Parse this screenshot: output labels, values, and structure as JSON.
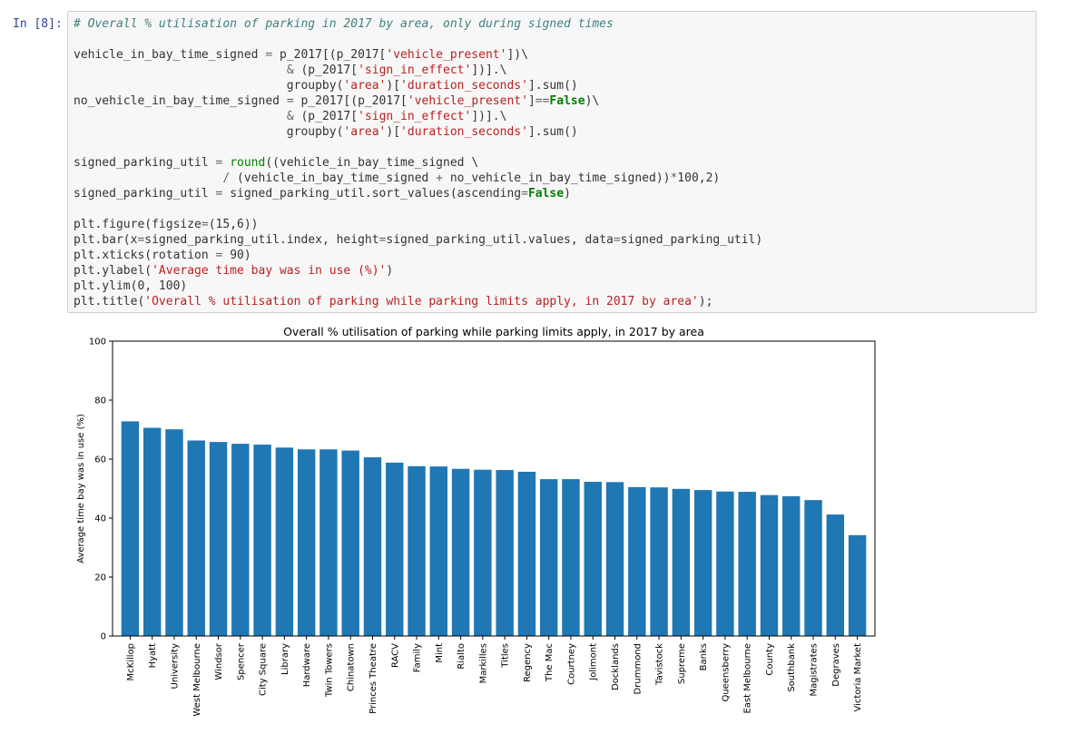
{
  "cell": {
    "prompt": "In [8]:",
    "code_lines": [
      [
        {
          "c": "cm",
          "t": "# Overall % utilisation of parking in 2017 by area, only during signed times"
        }
      ],
      [],
      [
        {
          "t": "vehicle_in_bay_time_signed "
        },
        {
          "c": "op",
          "t": "="
        },
        {
          "t": " p_2017[(p_2017["
        },
        {
          "c": "st",
          "t": "'vehicle_present'"
        },
        {
          "t": "])\\"
        }
      ],
      [
        {
          "t": "                              "
        },
        {
          "c": "op",
          "t": "&"
        },
        {
          "t": " (p_2017["
        },
        {
          "c": "st",
          "t": "'sign_in_effect'"
        },
        {
          "t": "])]."
        },
        {
          "t": "\\"
        }
      ],
      [
        {
          "t": "                              groupby("
        },
        {
          "c": "st",
          "t": "'area'"
        },
        {
          "t": ")["
        },
        {
          "c": "st",
          "t": "'duration_seconds'"
        },
        {
          "t": "].sum()"
        }
      ],
      [
        {
          "t": "no_vehicle_in_bay_time_signed "
        },
        {
          "c": "op",
          "t": "="
        },
        {
          "t": " p_2017[(p_2017["
        },
        {
          "c": "st",
          "t": "'vehicle_present'"
        },
        {
          "t": "]"
        },
        {
          "c": "op",
          "t": "=="
        },
        {
          "c": "kw",
          "t": "False"
        },
        {
          "t": ")\\"
        }
      ],
      [
        {
          "t": "                              "
        },
        {
          "c": "op",
          "t": "&"
        },
        {
          "t": " (p_2017["
        },
        {
          "c": "st",
          "t": "'sign_in_effect'"
        },
        {
          "t": "])]."
        },
        {
          "t": "\\"
        }
      ],
      [
        {
          "t": "                              groupby("
        },
        {
          "c": "st",
          "t": "'area'"
        },
        {
          "t": ")["
        },
        {
          "c": "st",
          "t": "'duration_seconds'"
        },
        {
          "t": "].sum()"
        }
      ],
      [],
      [
        {
          "t": "signed_parking_util "
        },
        {
          "c": "op",
          "t": "="
        },
        {
          "t": " "
        },
        {
          "c": "bi",
          "t": "round"
        },
        {
          "t": "((vehicle_in_bay_time_signed \\"
        }
      ],
      [
        {
          "t": "                     "
        },
        {
          "c": "op",
          "t": "/"
        },
        {
          "t": " (vehicle_in_bay_time_signed "
        },
        {
          "c": "op",
          "t": "+"
        },
        {
          "t": " no_vehicle_in_bay_time_signed))"
        },
        {
          "c": "op",
          "t": "*"
        },
        {
          "t": "100,2)"
        }
      ],
      [
        {
          "t": "signed_parking_util "
        },
        {
          "c": "op",
          "t": "="
        },
        {
          "t": " signed_parking_util.sort_values(ascending"
        },
        {
          "c": "op",
          "t": "="
        },
        {
          "c": "kw",
          "t": "False"
        },
        {
          "t": ")"
        }
      ],
      [],
      [
        {
          "t": "plt.figure(figsize"
        },
        {
          "c": "op",
          "t": "="
        },
        {
          "t": "(15,6))"
        }
      ],
      [
        {
          "t": "plt.bar(x"
        },
        {
          "c": "op",
          "t": "="
        },
        {
          "t": "signed_parking_util.index, height"
        },
        {
          "c": "op",
          "t": "="
        },
        {
          "t": "signed_parking_util.values, data"
        },
        {
          "c": "op",
          "t": "="
        },
        {
          "t": "signed_parking_util)"
        }
      ],
      [
        {
          "t": "plt.xticks(rotation "
        },
        {
          "c": "op",
          "t": "="
        },
        {
          "t": " 90)"
        }
      ],
      [
        {
          "t": "plt.ylabel("
        },
        {
          "c": "st",
          "t": "'Average time bay was in use (%)'"
        },
        {
          "t": ")"
        }
      ],
      [
        {
          "t": "plt.ylim(0, 100)"
        }
      ],
      [
        {
          "t": "plt.title("
        },
        {
          "c": "st",
          "t": "'Overall % utilisation of parking while parking limits apply, in 2017 by area'"
        },
        {
          "t": ");"
        }
      ]
    ]
  },
  "chart_data": {
    "type": "bar",
    "title": "Overall % utilisation of parking while parking limits apply, in 2017 by area",
    "xlabel": "",
    "ylabel": "Average time bay was in use (%)",
    "ylim": [
      0,
      100
    ],
    "yticks": [
      0,
      20,
      40,
      60,
      80,
      100
    ],
    "grid": false,
    "bar_color": "#1f77b4",
    "categories": [
      "McKillop",
      "Hyatt",
      "University",
      "West Melbourne",
      "Windsor",
      "Spencer",
      "City Square",
      "Library",
      "Hardware",
      "Twin Towers",
      "Chinatown",
      "Princes Theatre",
      "RACV",
      "Family",
      "Mint",
      "Rialto",
      "Markilles",
      "Titles",
      "Regency",
      "The Mac",
      "Courtney",
      "Jolimont",
      "Docklands",
      "Drummond",
      "Tavistock",
      "Supreme",
      "Banks",
      "Queensberry",
      "East Melbourne",
      "County",
      "Southbank",
      "Magistrates",
      "Degraves",
      "Victoria Market"
    ],
    "values": [
      72.8,
      70.6,
      70.1,
      66.3,
      65.8,
      65.2,
      64.9,
      63.9,
      63.3,
      63.3,
      62.9,
      60.6,
      58.8,
      57.6,
      57.5,
      56.7,
      56.4,
      56.3,
      55.7,
      53.2,
      53.2,
      52.3,
      52.2,
      50.5,
      50.4,
      49.9,
      49.5,
      49.0,
      48.9,
      47.8,
      47.4,
      46.1,
      41.2,
      34.2
    ]
  }
}
